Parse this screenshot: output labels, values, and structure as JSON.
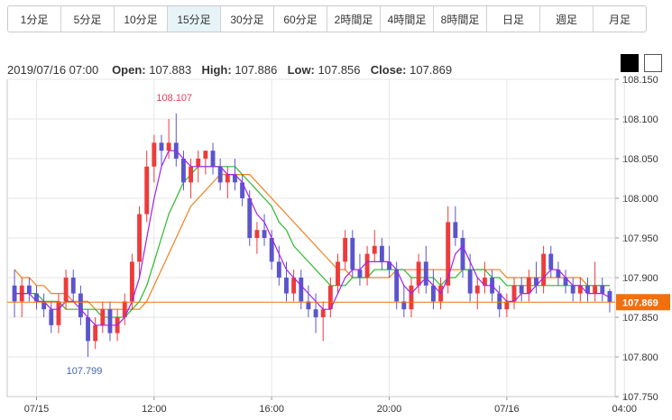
{
  "timeframes": [
    {
      "label": "1分足"
    },
    {
      "label": "5分足"
    },
    {
      "label": "10分足"
    },
    {
      "label": "15分足",
      "active": true
    },
    {
      "label": "30分足"
    },
    {
      "label": "60分足"
    },
    {
      "label": "2時間足"
    },
    {
      "label": "4時間足"
    },
    {
      "label": "8時間足"
    },
    {
      "label": "日足"
    },
    {
      "label": "週足"
    },
    {
      "label": "月足"
    }
  ],
  "info": {
    "datetime": "2019/07/16 07:00",
    "open_label": "Open:",
    "open": "107.883",
    "high_label": "High:",
    "high": "107.886",
    "low_label": "Low:",
    "low": "107.856",
    "close_label": "Close:",
    "close": "107.869"
  },
  "theme_buttons": [
    "dark",
    "light"
  ],
  "colors": {
    "up": "#ee3b3b",
    "down": "#5b55cc",
    "ma_short": "#a020f0",
    "ma_mid": "#2eb82e",
    "ma_long": "#f08020",
    "current": "#f07010",
    "high_label": "#e0405a",
    "low_label": "#4466aa"
  },
  "chart_data": {
    "type": "candlestick",
    "y_ticks": [
      "107.750",
      "107.800",
      "107.850",
      "107.900",
      "107.950",
      "108.000",
      "108.050",
      "108.100",
      "108.150"
    ],
    "ylim": [
      107.75,
      108.15
    ],
    "x_ticks": [
      {
        "label": "07/15",
        "bar": 3
      },
      {
        "label": "12:00",
        "bar": 19
      },
      {
        "label": "16:00",
        "bar": 35
      },
      {
        "label": "20:00",
        "bar": 51
      },
      {
        "label": "07/16",
        "bar": 67
      },
      {
        "label": "04:00",
        "bar": 83
      }
    ],
    "current_price": "107.869",
    "high_marker": {
      "value": "108.107",
      "bar": 22
    },
    "low_marker": {
      "value": "107.799",
      "bar": 10
    },
    "candles": [
      [
        107.89,
        107.91,
        107.85,
        107.87
      ],
      [
        107.87,
        107.9,
        107.85,
        107.89
      ],
      [
        107.89,
        107.9,
        107.87,
        107.88
      ],
      [
        107.88,
        107.89,
        107.86,
        107.87
      ],
      [
        107.87,
        107.88,
        107.85,
        107.86
      ],
      [
        107.86,
        107.87,
        107.83,
        107.84
      ],
      [
        107.84,
        107.88,
        107.83,
        107.87
      ],
      [
        107.87,
        107.91,
        107.86,
        107.9
      ],
      [
        107.9,
        107.91,
        107.87,
        107.88
      ],
      [
        107.88,
        107.89,
        107.84,
        107.85
      ],
      [
        107.85,
        107.86,
        107.8,
        107.82
      ],
      [
        107.82,
        107.85,
        107.81,
        107.84
      ],
      [
        107.84,
        107.87,
        107.83,
        107.86
      ],
      [
        107.86,
        107.87,
        107.82,
        107.83
      ],
      [
        107.83,
        107.86,
        107.82,
        107.85
      ],
      [
        107.85,
        107.88,
        107.84,
        107.87
      ],
      [
        107.87,
        107.93,
        107.86,
        107.92
      ],
      [
        107.92,
        107.99,
        107.9,
        107.98
      ],
      [
        107.98,
        108.06,
        107.97,
        108.04
      ],
      [
        108.04,
        108.08,
        108.02,
        108.07
      ],
      [
        108.07,
        108.08,
        108.04,
        108.06
      ],
      [
        108.06,
        108.1,
        108.05,
        108.07
      ],
      [
        108.07,
        108.107,
        108.04,
        108.05
      ],
      [
        108.05,
        108.06,
        108.01,
        108.02
      ],
      [
        108.02,
        108.05,
        108.0,
        108.04
      ],
      [
        108.04,
        108.06,
        108.02,
        108.05
      ],
      [
        108.05,
        108.06,
        108.03,
        108.06
      ],
      [
        108.06,
        108.07,
        108.03,
        108.04
      ],
      [
        108.04,
        108.05,
        108.01,
        108.02
      ],
      [
        108.02,
        108.04,
        108.0,
        108.03
      ],
      [
        108.03,
        108.05,
        108.01,
        108.02
      ],
      [
        108.02,
        108.03,
        107.99,
        108.0
      ],
      [
        108.0,
        108.01,
        107.94,
        107.95
      ],
      [
        107.95,
        107.97,
        107.93,
        107.96
      ],
      [
        107.96,
        107.98,
        107.94,
        107.95
      ],
      [
        107.95,
        107.96,
        107.91,
        107.92
      ],
      [
        107.92,
        107.94,
        107.89,
        107.9
      ],
      [
        107.9,
        107.92,
        107.87,
        107.88
      ],
      [
        107.88,
        107.91,
        107.87,
        107.9
      ],
      [
        107.9,
        107.91,
        107.86,
        107.87
      ],
      [
        107.87,
        107.89,
        107.85,
        107.86
      ],
      [
        107.86,
        107.88,
        107.83,
        107.85
      ],
      [
        107.85,
        107.87,
        107.82,
        107.86
      ],
      [
        107.86,
        107.9,
        107.85,
        107.89
      ],
      [
        107.89,
        107.93,
        107.88,
        107.92
      ],
      [
        107.92,
        107.96,
        107.91,
        107.95
      ],
      [
        107.95,
        107.96,
        107.9,
        107.91
      ],
      [
        107.91,
        107.93,
        107.89,
        107.9
      ],
      [
        107.9,
        107.94,
        107.89,
        107.93
      ],
      [
        107.93,
        107.96,
        107.92,
        107.94
      ],
      [
        107.94,
        107.95,
        107.91,
        107.92
      ],
      [
        107.92,
        107.94,
        107.9,
        107.91
      ],
      [
        107.91,
        107.92,
        107.86,
        107.87
      ],
      [
        107.87,
        107.89,
        107.85,
        107.86
      ],
      [
        107.86,
        107.9,
        107.85,
        107.89
      ],
      [
        107.89,
        107.93,
        107.88,
        107.92
      ],
      [
        107.92,
        107.94,
        107.88,
        107.89
      ],
      [
        107.89,
        107.91,
        107.86,
        107.87
      ],
      [
        107.87,
        107.9,
        107.86,
        107.89
      ],
      [
        107.89,
        107.99,
        107.88,
        107.97
      ],
      [
        107.97,
        107.99,
        107.94,
        107.95
      ],
      [
        107.95,
        107.96,
        107.9,
        107.91
      ],
      [
        107.91,
        107.93,
        107.87,
        107.88
      ],
      [
        107.88,
        107.9,
        107.86,
        107.89
      ],
      [
        107.89,
        107.92,
        107.88,
        107.9
      ],
      [
        107.9,
        107.91,
        107.87,
        107.88
      ],
      [
        107.88,
        107.89,
        107.85,
        107.86
      ],
      [
        107.86,
        107.88,
        107.85,
        107.87
      ],
      [
        107.87,
        107.9,
        107.86,
        107.89
      ],
      [
        107.89,
        107.9,
        107.87,
        107.88
      ],
      [
        107.88,
        107.91,
        107.87,
        107.9
      ],
      [
        107.9,
        107.92,
        107.88,
        107.89
      ],
      [
        107.89,
        107.94,
        107.88,
        107.93
      ],
      [
        107.93,
        107.94,
        107.9,
        107.91
      ],
      [
        107.91,
        107.92,
        107.89,
        107.9
      ],
      [
        107.9,
        107.91,
        107.88,
        107.89
      ],
      [
        107.89,
        107.9,
        107.87,
        107.88
      ],
      [
        107.88,
        107.9,
        107.87,
        107.89
      ],
      [
        107.89,
        107.9,
        107.87,
        107.88
      ],
      [
        107.88,
        107.92,
        107.87,
        107.89
      ],
      [
        107.89,
        107.9,
        107.87,
        107.88
      ],
      [
        107.883,
        107.886,
        107.856,
        107.869
      ]
    ],
    "ma_short": [
      107.88,
      107.88,
      107.88,
      107.87,
      107.87,
      107.86,
      107.86,
      107.87,
      107.87,
      107.86,
      107.85,
      107.84,
      107.84,
      107.84,
      107.84,
      107.85,
      107.87,
      107.9,
      107.95,
      108.0,
      108.04,
      108.06,
      108.06,
      108.05,
      108.04,
      108.04,
      108.04,
      108.04,
      108.04,
      108.03,
      108.03,
      108.02,
      108.0,
      107.98,
      107.97,
      107.95,
      107.93,
      107.91,
      107.9,
      107.89,
      107.88,
      107.87,
      107.86,
      107.86,
      107.88,
      107.9,
      107.91,
      107.91,
      107.92,
      107.92,
      107.92,
      107.92,
      107.91,
      107.89,
      107.88,
      107.89,
      107.9,
      107.89,
      107.88,
      107.9,
      107.93,
      107.94,
      107.92,
      107.9,
      107.89,
      107.89,
      107.88,
      107.87,
      107.87,
      107.88,
      107.88,
      107.89,
      107.9,
      107.91,
      107.91,
      107.9,
      107.89,
      107.89,
      107.88,
      107.88,
      107.88,
      107.875
    ],
    "ma_mid": [
      107.88,
      107.88,
      107.88,
      107.88,
      107.87,
      107.87,
      107.87,
      107.86,
      107.86,
      107.86,
      107.86,
      107.86,
      107.85,
      107.85,
      107.85,
      107.85,
      107.86,
      107.87,
      107.89,
      107.92,
      107.95,
      107.98,
      108.0,
      108.02,
      108.03,
      108.04,
      108.04,
      108.04,
      108.04,
      108.04,
      108.04,
      108.03,
      108.02,
      108.01,
      108.0,
      107.99,
      107.97,
      107.96,
      107.94,
      107.93,
      107.92,
      107.91,
      107.9,
      107.89,
      107.89,
      107.89,
      107.9,
      107.9,
      107.9,
      107.91,
      107.91,
      107.91,
      107.91,
      107.91,
      107.9,
      107.9,
      107.9,
      107.9,
      107.89,
      107.9,
      107.9,
      107.91,
      107.91,
      107.91,
      107.91,
      107.9,
      107.9,
      107.89,
      107.89,
      107.89,
      107.89,
      107.89,
      107.89,
      107.89,
      107.89,
      107.89,
      107.89,
      107.89,
      107.89,
      107.89,
      107.89,
      107.89
    ],
    "ma_long": [
      107.91,
      107.9,
      107.9,
      107.89,
      107.89,
      107.88,
      107.88,
      107.88,
      107.87,
      107.87,
      107.87,
      107.86,
      107.86,
      107.86,
      107.86,
      107.86,
      107.86,
      107.86,
      107.87,
      107.89,
      107.91,
      107.93,
      107.95,
      107.97,
      107.99,
      108.0,
      108.01,
      108.02,
      108.03,
      108.03,
      108.03,
      108.03,
      108.03,
      108.02,
      108.01,
      108.0,
      107.99,
      107.98,
      107.97,
      107.96,
      107.95,
      107.94,
      107.93,
      107.92,
      107.91,
      107.91,
      107.9,
      107.9,
      107.9,
      107.9,
      107.9,
      107.9,
      107.91,
      107.91,
      107.91,
      107.91,
      107.91,
      107.91,
      107.91,
      107.91,
      107.91,
      107.91,
      107.91,
      107.91,
      107.91,
      107.91,
      107.91,
      107.9,
      107.9,
      107.9,
      107.9,
      107.9,
      107.9,
      107.9,
      107.9,
      107.9,
      107.9,
      107.9,
      107.89,
      107.89,
      107.89,
      107.89
    ]
  }
}
